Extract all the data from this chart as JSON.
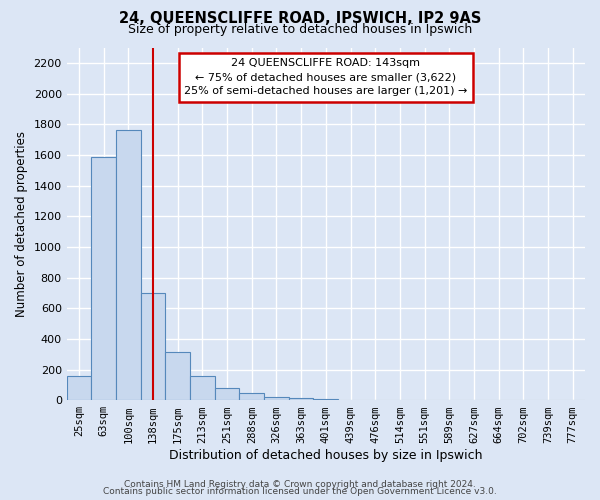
{
  "title": "24, QUEENSCLIFFE ROAD, IPSWICH, IP2 9AS",
  "subtitle": "Size of property relative to detached houses in Ipswich",
  "xlabel": "Distribution of detached houses by size in Ipswich",
  "ylabel": "Number of detached properties",
  "bar_labels": [
    "25sqm",
    "63sqm",
    "100sqm",
    "138sqm",
    "175sqm",
    "213sqm",
    "251sqm",
    "288sqm",
    "326sqm",
    "363sqm",
    "401sqm",
    "439sqm",
    "476sqm",
    "514sqm",
    "551sqm",
    "589sqm",
    "627sqm",
    "664sqm",
    "702sqm",
    "739sqm",
    "777sqm"
  ],
  "bar_values": [
    160,
    1585,
    1760,
    700,
    315,
    155,
    80,
    45,
    20,
    15,
    10,
    0,
    0,
    0,
    0,
    0,
    0,
    0,
    0,
    0,
    0
  ],
  "bar_color": "#c8d8ee",
  "bar_edge_color": "#5588bb",
  "highlight_index": 3,
  "highlight_line_color": "#cc0000",
  "ylim": [
    0,
    2300
  ],
  "yticks": [
    0,
    200,
    400,
    600,
    800,
    1000,
    1200,
    1400,
    1600,
    1800,
    2000,
    2200
  ],
  "annotation_title": "24 QUEENSCLIFFE ROAD: 143sqm",
  "annotation_line1": "← 75% of detached houses are smaller (3,622)",
  "annotation_line2": "25% of semi-detached houses are larger (1,201) →",
  "annotation_box_color": "#ffffff",
  "annotation_box_edge": "#cc0000",
  "footer1": "Contains HM Land Registry data © Crown copyright and database right 2024.",
  "footer2": "Contains public sector information licensed under the Open Government Licence v3.0.",
  "background_color": "#dce6f5",
  "plot_bg_color": "#dce6f5",
  "grid_color": "#ffffff"
}
